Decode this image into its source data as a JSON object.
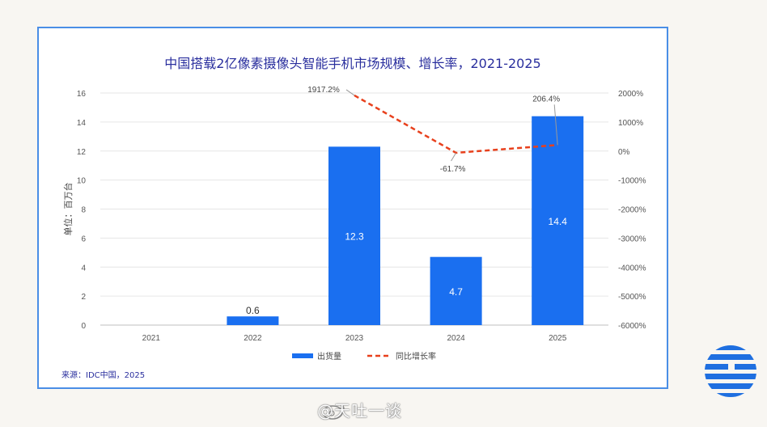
{
  "chart_data": {
    "type": "bar",
    "title": "中国搭载2亿像素摄像头智能手机市场规模、增长率，2021-2025",
    "categories": [
      "2021",
      "2022",
      "2023",
      "2024",
      "2025"
    ],
    "series": [
      {
        "name": "出货量",
        "kind": "bar",
        "axis": "left",
        "color": "#1a6ff0",
        "values": [
          null,
          0.6,
          12.3,
          4.7,
          14.4
        ],
        "labels": [
          "",
          "0.6",
          "12.3",
          "4.7",
          "14.4"
        ]
      },
      {
        "name": "同比增长率",
        "kind": "line",
        "axis": "right",
        "color": "#e8401c",
        "values": [
          null,
          null,
          1917.2,
          -61.7,
          206.4
        ],
        "labels": [
          "",
          "",
          "1917.2%",
          "-61.7%",
          "206.4%"
        ]
      }
    ],
    "ylabel": "单位：百万台",
    "ylim": [
      0,
      16
    ],
    "yticks": [
      "0",
      "2",
      "4",
      "6",
      "8",
      "10",
      "12",
      "14",
      "16"
    ],
    "y2lim": [
      -6000,
      2000
    ],
    "y2ticks": [
      "-6000%",
      "-5000%",
      "-4000%",
      "-3000%",
      "-2000%",
      "-1000%",
      "0%",
      "1000%",
      "2000%"
    ],
    "legend_position": "bottom",
    "grid": true
  },
  "source": "来源：IDC中国，2025",
  "watermark": "@天吐一谈"
}
